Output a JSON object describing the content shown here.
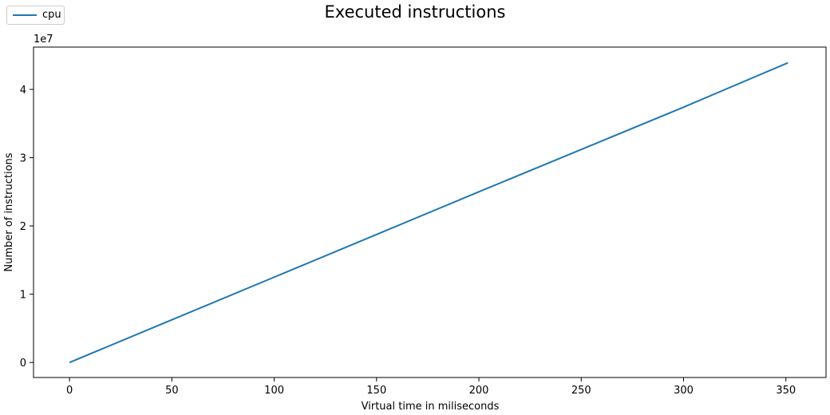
{
  "chart_data": {
    "type": "line",
    "title": "Executed instructions",
    "xlabel": "Virtual time in miliseconds",
    "ylabel": "Number of instructions",
    "y_offset_label": "1e7",
    "xlim": [
      -17.6,
      369.6
    ],
    "ylim": [
      -2200000,
      46200000
    ],
    "x_ticks": [
      0,
      50,
      100,
      150,
      200,
      250,
      300,
      350
    ],
    "x_tick_labels": [
      "0",
      "50",
      "100",
      "150",
      "200",
      "250",
      "300",
      "350"
    ],
    "y_ticks": [
      0,
      10000000,
      20000000,
      30000000,
      40000000
    ],
    "y_tick_labels": [
      "0",
      "1",
      "2",
      "3",
      "4"
    ],
    "grid": false,
    "legend_position": "top-left",
    "series": [
      {
        "name": "cpu",
        "color": "#1f77b4",
        "x": [
          0,
          50,
          100,
          150,
          200,
          250,
          300,
          351
        ],
        "y": [
          0,
          6250000,
          12500000,
          18750000,
          25000000,
          31200000,
          37400000,
          43900000
        ]
      }
    ]
  }
}
